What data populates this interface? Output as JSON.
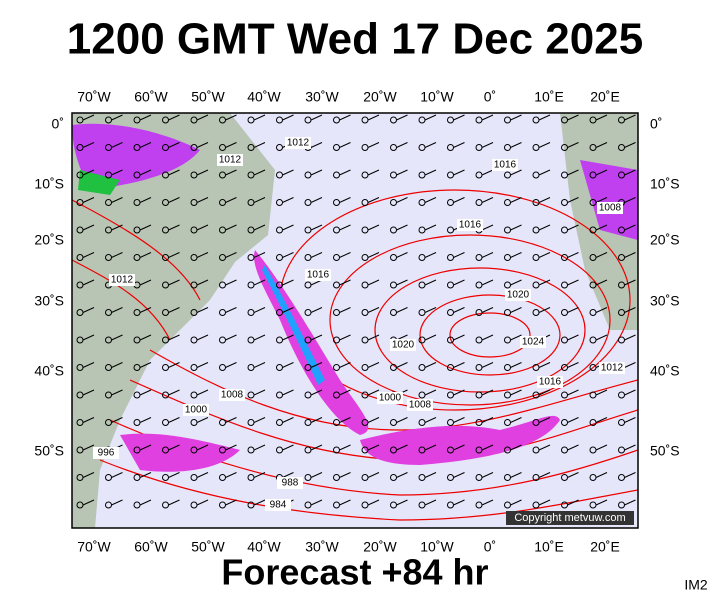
{
  "header": {
    "title": "1200 GMT Wed 17 Dec 2025"
  },
  "map": {
    "lon_labels": [
      "70˚W",
      "60˚W",
      "50˚W",
      "40˚W",
      "30˚W",
      "20˚W",
      "10˚W",
      "0˚",
      "10˚E",
      "20˚E"
    ],
    "lat_labels": [
      "0˚",
      "10˚S",
      "20˚S",
      "30˚S",
      "40˚S",
      "50˚S"
    ],
    "isobar_labels": [
      "1012",
      "1012",
      "1016",
      "1016",
      "1016",
      "1012",
      "1020",
      "1024",
      "1020",
      "1016",
      "1012",
      "1008",
      "1000",
      "1008",
      "1000",
      "996",
      "988",
      "984",
      "1008"
    ],
    "copyright": "Copyright metvuw.com"
  },
  "footer": {
    "forecast": "Forecast +84 hr",
    "code": "IM2"
  }
}
